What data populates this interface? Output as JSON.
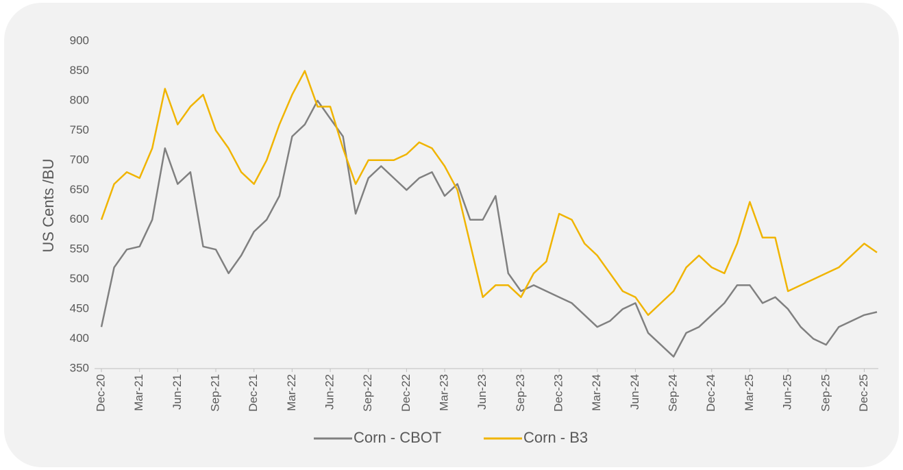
{
  "chart_data": {
    "type": "line",
    "ylabel": "US Cents /BU",
    "categories": [
      "Dec-20",
      null,
      null,
      "Mar-21",
      null,
      null,
      "Jun-21",
      null,
      null,
      "Sep-21",
      null,
      null,
      "Dec-21",
      null,
      null,
      "Mar-22",
      null,
      null,
      "Jun-22",
      null,
      null,
      "Sep-22",
      null,
      null,
      "Dec-22",
      null,
      null,
      "Mar-23",
      null,
      null,
      "Jun-23",
      null,
      null,
      "Sep-23",
      null,
      null,
      "Dec-23",
      null,
      null,
      "Mar-24",
      null,
      null,
      "Jun-24",
      null,
      null,
      "Sep-24",
      null,
      null,
      "Dec-24",
      null,
      null,
      "Mar-25",
      null,
      null,
      "Jun-25",
      null,
      null,
      "Sep-25",
      null,
      null,
      "Dec-25",
      null
    ],
    "series": [
      {
        "name": "Corn - CBOT",
        "color": "#808080",
        "values": [
          420,
          520,
          550,
          555,
          600,
          720,
          660,
          680,
          555,
          550,
          510,
          540,
          580,
          600,
          640,
          740,
          760,
          800,
          770,
          740,
          610,
          670,
          690,
          670,
          650,
          670,
          680,
          640,
          660,
          600,
          600,
          640,
          510,
          480,
          490,
          480,
          470,
          460,
          440,
          420,
          430,
          450,
          460,
          410,
          390,
          370,
          410,
          420,
          440,
          460,
          490,
          490,
          460,
          470,
          450,
          420,
          400,
          390,
          420,
          430,
          440,
          445
        ]
      },
      {
        "name": "Corn - B3",
        "color": "#f0b400",
        "values": [
          600,
          660,
          680,
          670,
          720,
          820,
          760,
          790,
          810,
          750,
          720,
          680,
          660,
          700,
          760,
          810,
          850,
          790,
          790,
          720,
          660,
          700,
          700,
          700,
          710,
          730,
          720,
          690,
          650,
          560,
          470,
          490,
          490,
          470,
          510,
          530,
          610,
          600,
          560,
          540,
          510,
          480,
          470,
          440,
          460,
          480,
          520,
          540,
          520,
          510,
          560,
          630,
          570,
          570,
          480,
          490,
          500,
          510,
          520,
          540,
          560,
          545
        ]
      }
    ],
    "ylim": [
      350,
      900
    ],
    "yticks": [
      350,
      400,
      450,
      500,
      550,
      600,
      650,
      700,
      750,
      800,
      850,
      900
    ],
    "legend": "bottom"
  }
}
